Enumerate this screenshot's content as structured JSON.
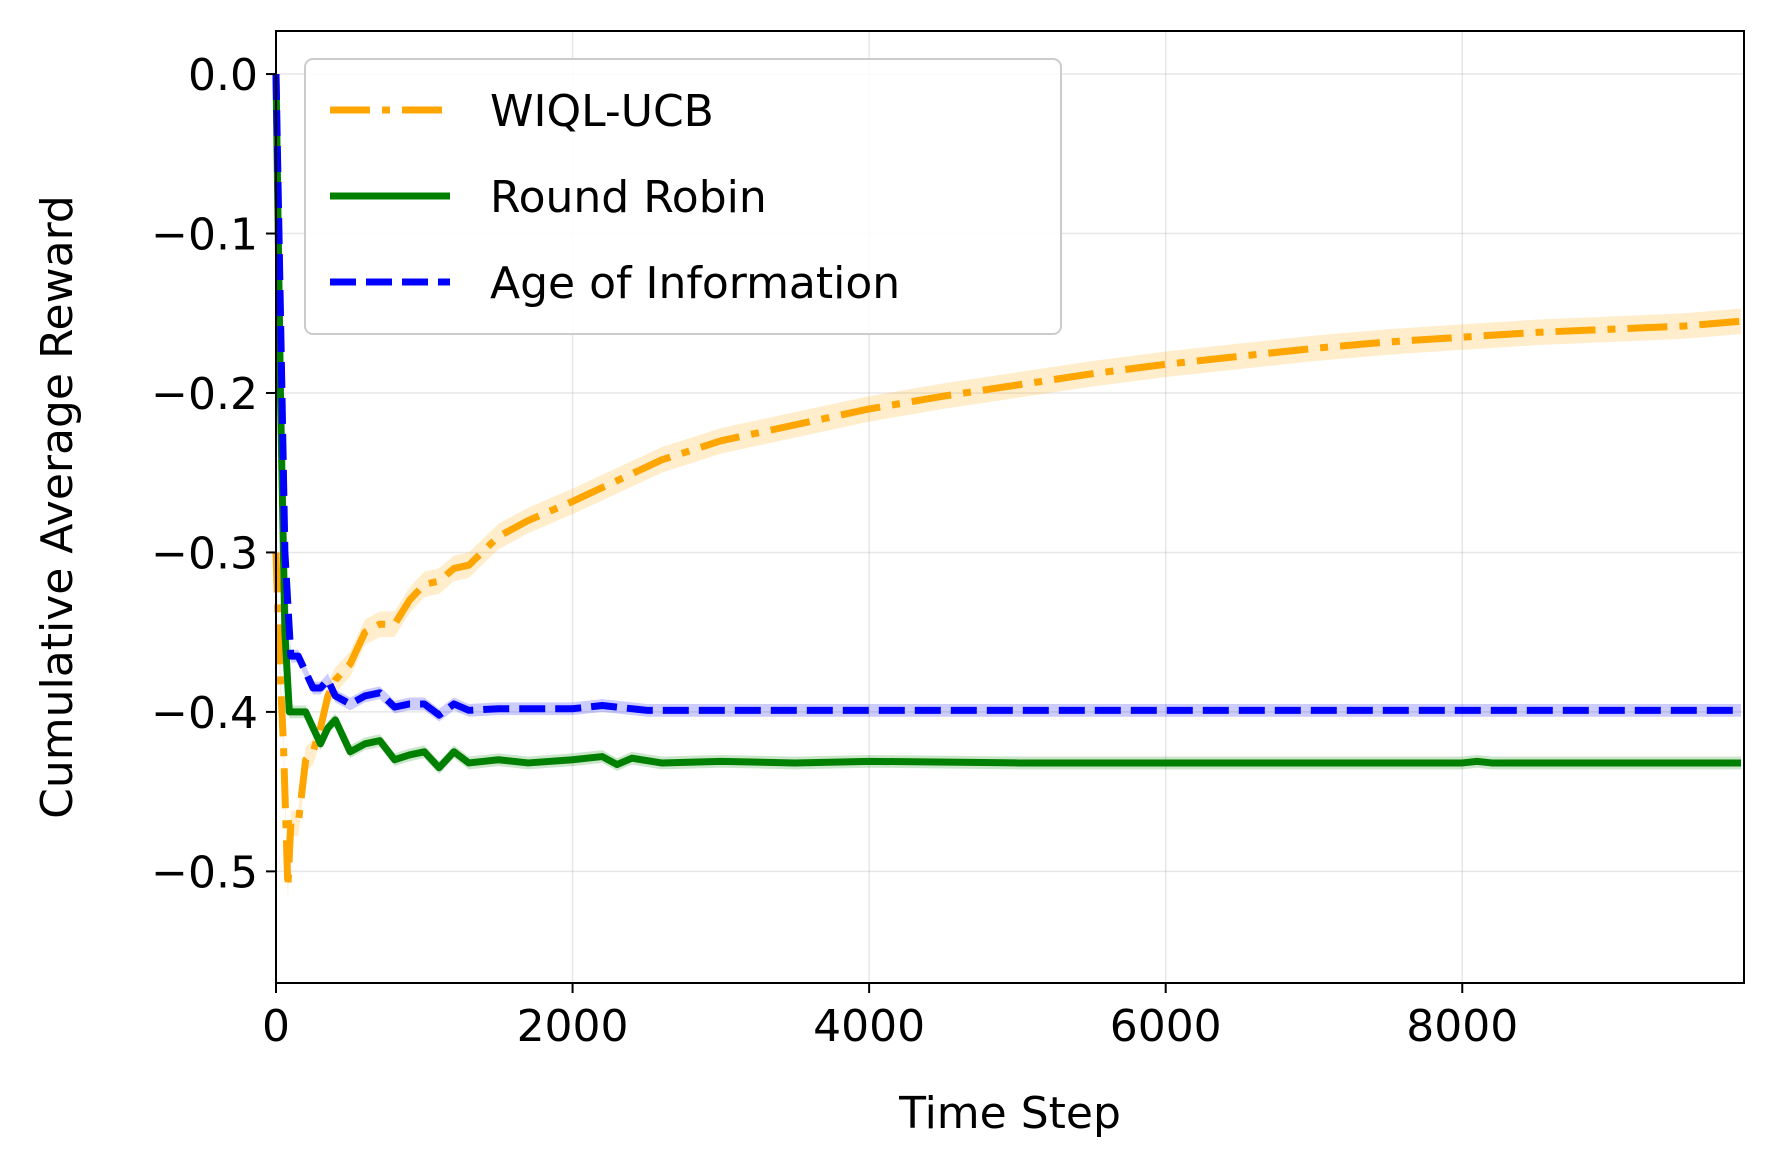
{
  "chart_data": {
    "type": "line",
    "xlabel": "Time Step",
    "ylabel": "Cumulative Average Reward",
    "xlim": [
      0,
      9900
    ],
    "ylim": [
      -0.57,
      0.027
    ],
    "xticks": [
      0,
      2000,
      4000,
      6000,
      8000
    ],
    "xtick_labels": [
      "0",
      "2000",
      "4000",
      "6000",
      "8000"
    ],
    "yticks": [
      0.0,
      -0.1,
      -0.2,
      -0.3,
      -0.4,
      -0.5
    ],
    "ytick_labels": [
      "0.0",
      "−0.1",
      "−0.2",
      "−0.3",
      "−0.4",
      "−0.5"
    ],
    "grid": true,
    "legend_position": "top-left",
    "series": [
      {
        "name": "WIQL-UCB",
        "color": "#ffa500",
        "style": "dashdot",
        "band": 0.008,
        "x": [
          0,
          20,
          50,
          80,
          100,
          150,
          200,
          250,
          300,
          350,
          400,
          500,
          600,
          700,
          800,
          900,
          1000,
          1100,
          1200,
          1300,
          1500,
          1700,
          2000,
          2300,
          2600,
          3000,
          3500,
          4000,
          4500,
          5000,
          5500,
          6000,
          6500,
          7000,
          7500,
          8000,
          8500,
          9000,
          9500,
          9880
        ],
        "y": [
          -0.3,
          -0.36,
          -0.42,
          -0.51,
          -0.47,
          -0.47,
          -0.43,
          -0.425,
          -0.41,
          -0.39,
          -0.38,
          -0.37,
          -0.35,
          -0.345,
          -0.345,
          -0.33,
          -0.32,
          -0.318,
          -0.31,
          -0.308,
          -0.29,
          -0.28,
          -0.268,
          -0.255,
          -0.242,
          -0.23,
          -0.22,
          -0.21,
          -0.202,
          -0.195,
          -0.188,
          -0.182,
          -0.177,
          -0.172,
          -0.168,
          -0.165,
          -0.162,
          -0.16,
          -0.158,
          -0.155
        ]
      },
      {
        "name": "Round Robin",
        "color": "#008000",
        "style": "solid",
        "band": 0.004,
        "x": [
          0,
          30,
          60,
          90,
          120,
          200,
          250,
          300,
          350,
          400,
          500,
          600,
          700,
          800,
          900,
          1000,
          1100,
          1200,
          1300,
          1500,
          1700,
          2000,
          2200,
          2300,
          2400,
          2600,
          3000,
          3500,
          4000,
          5000,
          6000,
          7000,
          8000,
          8100,
          8200,
          9000,
          9880
        ],
        "y": [
          0.0,
          -0.2,
          -0.35,
          -0.4,
          -0.4,
          -0.4,
          -0.41,
          -0.42,
          -0.41,
          -0.405,
          -0.425,
          -0.42,
          -0.418,
          -0.43,
          -0.427,
          -0.425,
          -0.435,
          -0.425,
          -0.432,
          -0.43,
          -0.432,
          -0.43,
          -0.428,
          -0.433,
          -0.429,
          -0.432,
          -0.431,
          -0.432,
          -0.431,
          -0.432,
          -0.432,
          -0.432,
          -0.432,
          -0.431,
          -0.432,
          -0.432,
          -0.432
        ]
      },
      {
        "name": "Age of Information",
        "color": "#0000ff",
        "style": "dashed",
        "band": 0.004,
        "x": [
          0,
          30,
          60,
          100,
          150,
          200,
          250,
          300,
          350,
          400,
          500,
          600,
          700,
          800,
          900,
          1000,
          1100,
          1200,
          1300,
          1500,
          2000,
          2200,
          2500,
          3000,
          4000,
          5000,
          6000,
          7000,
          8000,
          9000,
          9880
        ],
        "y": [
          0.0,
          -0.15,
          -0.3,
          -0.365,
          -0.365,
          -0.375,
          -0.385,
          -0.385,
          -0.38,
          -0.39,
          -0.395,
          -0.39,
          -0.388,
          -0.397,
          -0.395,
          -0.395,
          -0.402,
          -0.395,
          -0.399,
          -0.398,
          -0.398,
          -0.396,
          -0.399,
          -0.399,
          -0.399,
          -0.399,
          -0.399,
          -0.399,
          -0.399,
          -0.399,
          -0.399
        ]
      }
    ]
  }
}
